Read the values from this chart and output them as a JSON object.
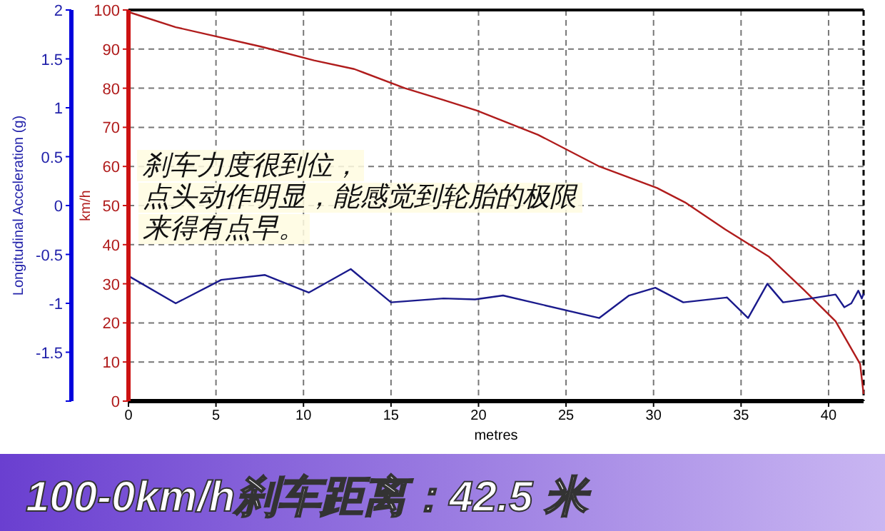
{
  "chart_data": {
    "type": "line",
    "title": "100-0km/h刹车距离：42.5 米",
    "xlabel": "metres",
    "ylabel": "Longitudinal Acceleration (g)",
    "y2label": "km/h",
    "xlim": [
      0,
      42
    ],
    "xticks": [
      0,
      5,
      10,
      15,
      20,
      25,
      30,
      35,
      40
    ],
    "ylim": [
      -2,
      2
    ],
    "yticks": [
      {
        "value": -2,
        "label": null
      },
      -1.5,
      -1,
      -0.5,
      0,
      0.5,
      1,
      1.5,
      2
    ],
    "y2lim": [
      0,
      100
    ],
    "y2ticks": [
      0,
      10,
      20,
      30,
      40,
      50,
      60,
      70,
      80,
      90,
      100
    ],
    "grid": true,
    "line_style": "solid",
    "marker": "none",
    "annotations": [
      "刹车力度很到位，",
      "点头动作明显，能感觉到轮胎的极限",
      "来得有点早。"
    ],
    "ref_lines": [
      {
        "axis": "x",
        "value": 42,
        "label": null,
        "color": "#000000",
        "line_style": "dashed"
      }
    ],
    "series": [
      {
        "axis": "y2",
        "color": "#b01c1c",
        "x": [
          0,
          2.7,
          7.6,
          10.6,
          12.9,
          15.8,
          18.0,
          19.9,
          23.4,
          26.9,
          30.2,
          31.8,
          34.1,
          36.6,
          38.6,
          40.4,
          41.8,
          42.0
        ],
        "values": [
          99.5,
          95.6,
          90.6,
          87.1,
          84.9,
          80.0,
          77.0,
          74.3,
          68.1,
          60.0,
          54.5,
          50.8,
          43.9,
          36.9,
          28.4,
          20.4,
          9.5,
          1.8
        ]
      },
      {
        "axis": "y",
        "color": "#1a1a8c",
        "x": [
          0,
          2.7,
          5.3,
          7.8,
          10.3,
          12.7,
          15.0,
          18.0,
          19.8,
          21.4,
          26.9,
          28.6,
          30.1,
          31.7,
          34.2,
          35.4,
          36.5,
          37.4,
          39.0,
          40.4,
          40.9,
          41.3,
          41.7,
          41.9,
          42.0
        ],
        "values": [
          -0.72,
          -1.0,
          -0.76,
          -0.71,
          -0.89,
          -0.65,
          -0.99,
          -0.95,
          -0.96,
          -0.92,
          -1.15,
          -0.92,
          -0.84,
          -0.99,
          -0.94,
          -1.15,
          -0.8,
          -0.99,
          -0.95,
          -0.91,
          -1.04,
          -1.0,
          -0.87,
          -0.95,
          -0.9
        ]
      }
    ]
  }
}
